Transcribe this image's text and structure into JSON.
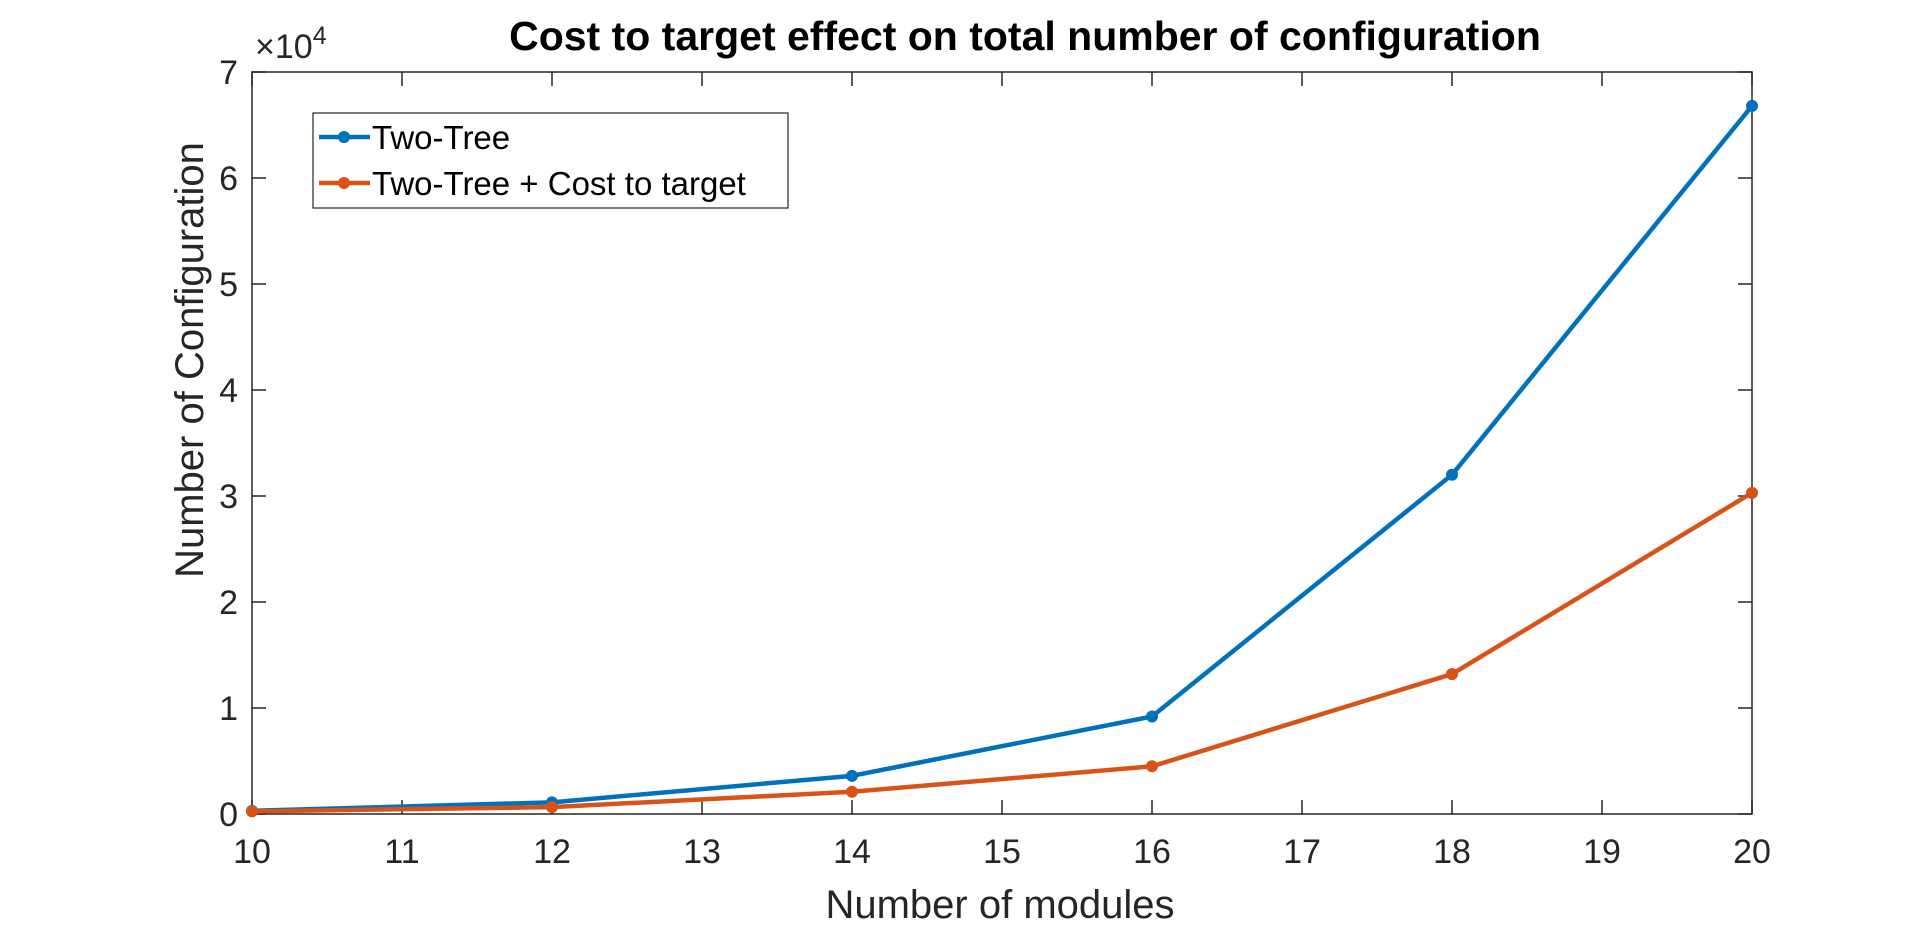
{
  "chart_data": {
    "type": "line",
    "title": "Cost to target effect on total number of configuration",
    "xlabel": "Number of modules",
    "ylabel": "Number of Configuration",
    "xlim": [
      10,
      20
    ],
    "ylim": [
      0,
      70000
    ],
    "xticks": [
      "10",
      "11",
      "12",
      "13",
      "14",
      "15",
      "16",
      "17",
      "18",
      "19",
      "20"
    ],
    "yticks": [
      "0",
      "1",
      "2",
      "3",
      "4",
      "5",
      "6",
      "7"
    ],
    "y_exponent_label": "×10",
    "y_exponent_power": "4",
    "grid": false,
    "legend_position": "top-left",
    "x": [
      10,
      12,
      14,
      16,
      18,
      20
    ],
    "series": [
      {
        "name": "Two-Tree",
        "color": "#0072BD",
        "values": [
          300,
          1100,
          3600,
          9200,
          32000,
          66800
        ]
      },
      {
        "name": "Two-Tree + Cost to target",
        "color": "#D95319",
        "values": [
          250,
          650,
          2100,
          4500,
          13200,
          30300
        ]
      }
    ]
  }
}
